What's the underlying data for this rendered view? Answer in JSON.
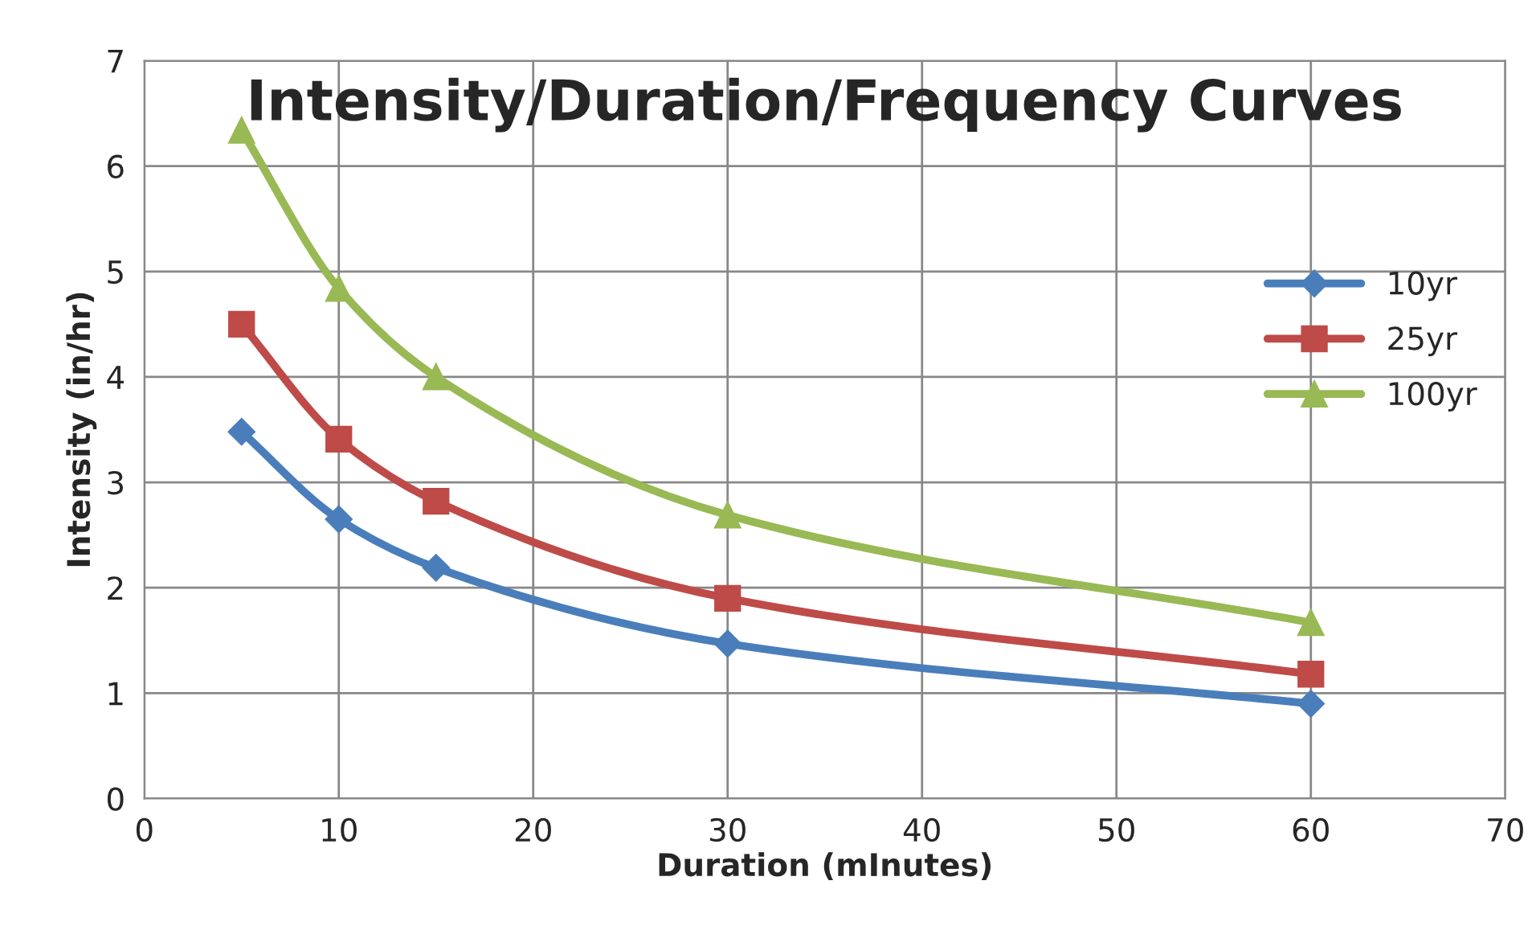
{
  "chart_data": {
    "type": "line",
    "title": "Intensity/Duration/Frequency Curves",
    "xlabel": "Duration (mInutes)",
    "ylabel": "Intensity (in/hr)",
    "x": [
      5,
      10,
      15,
      30,
      60
    ],
    "series": [
      {
        "name": "10yr",
        "color": "#4a7ebb",
        "marker": "diamond",
        "values": [
          3.48,
          2.65,
          2.19,
          1.47,
          0.9
        ]
      },
      {
        "name": "25yr",
        "color": "#be4b48",
        "marker": "square",
        "values": [
          4.5,
          3.41,
          2.82,
          1.9,
          1.18
        ]
      },
      {
        "name": "100yr",
        "color": "#98b954",
        "marker": "triangle",
        "values": [
          6.34,
          4.84,
          4.0,
          2.69,
          1.67
        ]
      }
    ],
    "xlim": [
      0,
      70
    ],
    "xticks": [
      0,
      10,
      20,
      30,
      40,
      50,
      60,
      70
    ],
    "ylim": [
      0,
      7
    ],
    "yticks": [
      0,
      1,
      2,
      3,
      4,
      5,
      6,
      7
    ],
    "grid": true,
    "legend": "right",
    "line_style": "solid"
  }
}
